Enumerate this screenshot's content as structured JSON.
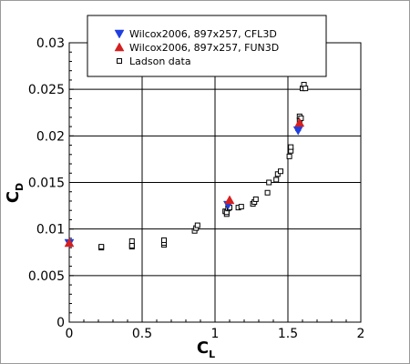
{
  "chart_data": {
    "type": "scatter",
    "xlabel": {
      "main": "C",
      "sub": "L"
    },
    "ylabel": {
      "main": "C",
      "sub": "D"
    },
    "xlim": [
      0,
      2
    ],
    "ylim": [
      0,
      0.03
    ],
    "xticks": [
      0,
      0.5,
      1,
      1.5,
      2
    ],
    "xtick_labels": [
      "0",
      "0.5",
      "1",
      "1.5",
      "2"
    ],
    "yticks": [
      0,
      0.005,
      0.01,
      0.015,
      0.02,
      0.025,
      0.03
    ],
    "ytick_labels": [
      "0",
      "0.005",
      "0.01",
      "0.015",
      "0.02",
      "0.025",
      "0.03"
    ],
    "grid": true,
    "legend_position": "top-center",
    "series": [
      {
        "name": "Wilcox2006, 897x257, CFL3D",
        "marker": "triangle-down",
        "color": "#1f3fe0",
        "x": [
          0.0,
          1.09,
          1.57
        ],
        "y": [
          0.0085,
          0.0126,
          0.0206
        ]
      },
      {
        "name": "Wilcox2006, 897x257, FUN3D",
        "marker": "triangle-up",
        "color": "#d42020",
        "x": [
          0.0,
          1.1,
          1.58
        ],
        "y": [
          0.0085,
          0.0131,
          0.0214
        ]
      },
      {
        "name": "Ladson data",
        "marker": "square-open",
        "color": "#000000",
        "x": [
          0.0,
          0.0,
          0.22,
          0.22,
          0.43,
          0.43,
          0.43,
          0.65,
          0.65,
          0.65,
          0.86,
          0.87,
          0.88,
          1.07,
          1.08,
          1.08,
          1.09,
          1.09,
          1.1,
          1.16,
          1.18,
          1.26,
          1.27,
          1.28,
          1.36,
          1.37,
          1.42,
          1.43,
          1.45,
          1.51,
          1.52,
          1.52,
          1.57,
          1.58,
          1.58,
          1.59,
          1.6,
          1.61,
          1.62
        ],
        "y": [
          0.0085,
          0.0085,
          0.008,
          0.0081,
          0.0081,
          0.0082,
          0.0087,
          0.0083,
          0.0085,
          0.0088,
          0.0098,
          0.0101,
          0.0104,
          0.0119,
          0.0116,
          0.0118,
          0.0122,
          0.0126,
          0.0123,
          0.0123,
          0.0124,
          0.0127,
          0.0129,
          0.0132,
          0.0139,
          0.015,
          0.0153,
          0.0159,
          0.0162,
          0.0178,
          0.0184,
          0.0188,
          0.0208,
          0.0217,
          0.0221,
          0.0219,
          0.0251,
          0.0255,
          0.0251
        ]
      }
    ]
  }
}
